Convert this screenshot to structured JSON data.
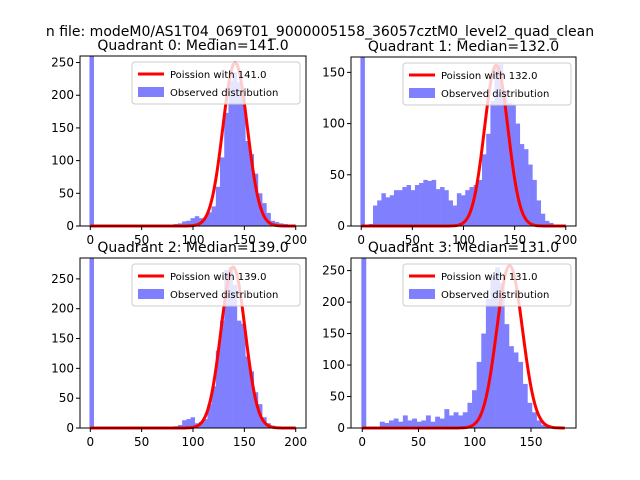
{
  "figure": {
    "suptitle": "n file: modeM0/AS1T04_069T01_9000005158_36057cztM0_level2_quad_clean"
  },
  "colors": {
    "hist": "#8080ff",
    "poisson": "#ff0000",
    "axes": "#000000"
  },
  "chart_data": [
    {
      "type": "histogram+line",
      "title": "Quadrant 0: Median=141.0",
      "xlim": [
        -10,
        210
      ],
      "ylim": [
        0,
        260
      ],
      "xticks": [
        0,
        50,
        100,
        150,
        200
      ],
      "yticks": [
        0,
        50,
        100,
        150,
        200,
        250
      ],
      "median": 141.0,
      "poisson_peak": 250,
      "legend": [
        "Poission with 141.0",
        "Observed distribution"
      ],
      "hist_start": -0.8,
      "bin_width": 4.1,
      "counts": [
        260,
        0,
        0,
        0,
        0,
        0,
        0,
        0,
        0,
        0,
        0,
        0,
        0,
        0,
        0,
        0,
        0,
        0,
        0,
        2,
        3,
        4,
        7,
        8,
        12,
        15,
        12,
        13,
        21,
        30,
        60,
        105,
        173,
        222,
        235,
        220,
        205,
        130,
        110,
        80,
        50,
        35,
        20,
        8,
        6,
        4,
        3,
        2,
        0,
        0
      ]
    },
    {
      "type": "histogram+line",
      "title": "Quadrant 1: Median=132.0",
      "xlim": [
        -10,
        210
      ],
      "ylim": [
        0,
        165
      ],
      "xticks": [
        0,
        50,
        100,
        150,
        200
      ],
      "yticks": [
        0,
        50,
        100,
        150
      ],
      "median": 132.0,
      "poisson_peak": 157,
      "legend": [
        "Poission with 132.0",
        "Observed distribution"
      ],
      "hist_start": -0.8,
      "bin_width": 4.1,
      "counts": [
        165,
        0,
        2,
        20,
        25,
        32,
        28,
        30,
        35,
        35,
        38,
        40,
        35,
        40,
        42,
        45,
        44,
        45,
        36,
        38,
        35,
        25,
        20,
        32,
        30,
        35,
        38,
        40,
        45,
        70,
        90,
        122,
        155,
        158,
        132,
        120,
        118,
        100,
        80,
        75,
        60,
        45,
        25,
        12,
        5,
        3,
        0,
        0,
        0,
        0
      ]
    },
    {
      "type": "histogram+line",
      "title": "Quadrant 2: Median=139.0",
      "xlim": [
        -10,
        210
      ],
      "ylim": [
        0,
        285
      ],
      "xticks": [
        0,
        50,
        100,
        150,
        200
      ],
      "yticks": [
        0,
        50,
        100,
        150,
        200,
        250
      ],
      "median": 139.0,
      "poisson_peak": 270,
      "legend": [
        "Poission with 139.0",
        "Observed distribution"
      ],
      "hist_start": -0.8,
      "bin_width": 4.1,
      "counts": [
        285,
        0,
        0,
        0,
        0,
        0,
        0,
        0,
        0,
        0,
        0,
        0,
        0,
        0,
        0,
        0,
        0,
        0,
        0,
        0,
        3,
        5,
        13,
        15,
        18,
        8,
        10,
        15,
        40,
        70,
        130,
        180,
        265,
        270,
        240,
        180,
        175,
        120,
        95,
        60,
        40,
        18,
        8,
        4,
        2,
        0,
        0,
        0,
        0,
        0
      ]
    },
    {
      "type": "histogram+line",
      "title": "Quadrant 3: Median=131.0",
      "xlim": [
        -10,
        190
      ],
      "ylim": [
        0,
        270
      ],
      "xticks": [
        0,
        50,
        100,
        150
      ],
      "yticks": [
        0,
        50,
        100,
        150,
        200,
        250
      ],
      "median": 131.0,
      "poisson_peak": 258,
      "legend": [
        "Poission with 131.0",
        "Observed distribution"
      ],
      "hist_start": -0.8,
      "bin_width": 4.1,
      "counts": [
        270,
        0,
        0,
        0,
        10,
        8,
        12,
        15,
        10,
        20,
        12,
        15,
        10,
        12,
        20,
        10,
        18,
        15,
        30,
        20,
        25,
        20,
        25,
        40,
        60,
        105,
        150,
        205,
        240,
        255,
        230,
        165,
        130,
        120,
        105,
        70,
        40,
        25,
        12,
        5,
        3,
        0,
        0,
        0,
        0,
        0
      ]
    }
  ]
}
